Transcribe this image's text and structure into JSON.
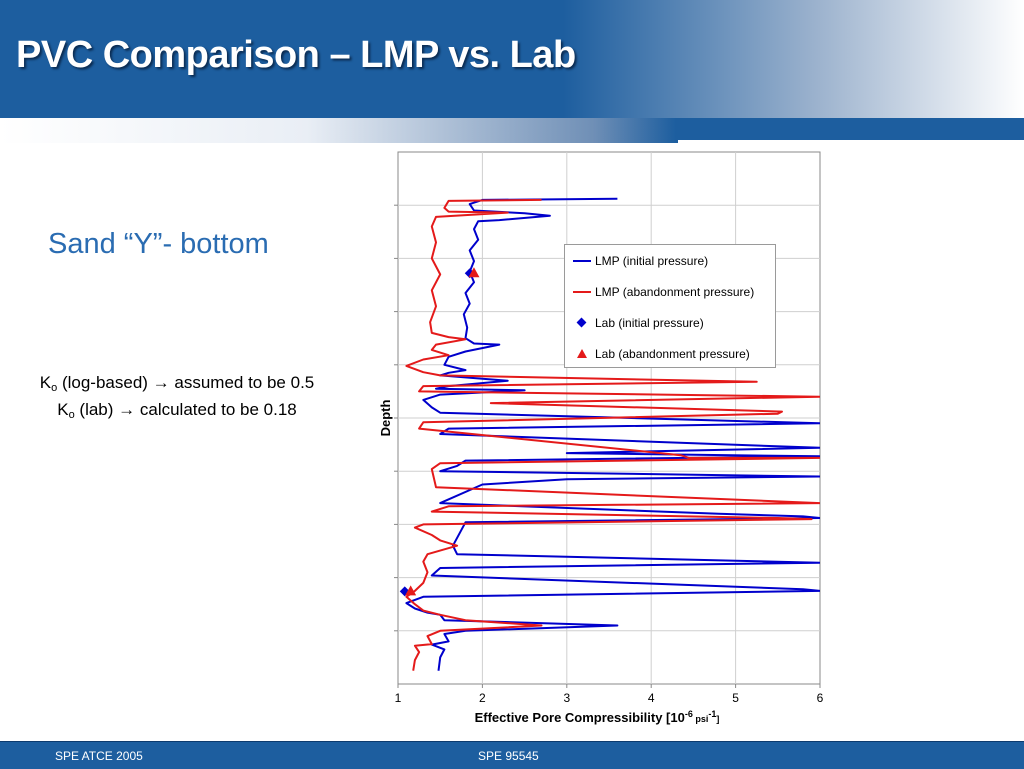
{
  "slide": {
    "title": "PVC Comparison – LMP vs. Lab",
    "subtitle": "Sand “Y”- bottom",
    "notes": [
      {
        "symbol": "K",
        "sub": "o",
        "text": " (log-based) → assumed to be 0.5"
      },
      {
        "symbol": "K",
        "sub": "o",
        "text": " (lab) → calculated to be 0.18"
      }
    ]
  },
  "footer": {
    "left": "SPE ATCE 2005",
    "center": "SPE 95545"
  },
  "colors": {
    "header_blue": "#1d5e9f",
    "subtitle_blue": "#2a6cb2",
    "series_initial": "#0000cc",
    "series_abandon": "#e41a1a"
  },
  "chart_data": {
    "type": "line",
    "orientation": "vertical-depth",
    "xlabel_main": "Effective Pore Compressibility [10",
    "xlabel_sup1": "-6",
    "xlabel_mid": " psi",
    "xlabel_sup2": "-1",
    "xlabel_end": "]",
    "ylabel": "Depth",
    "xlim": [
      1,
      6
    ],
    "ylim": [
      0,
      1
    ],
    "y_inverted": true,
    "xticks": [
      "1",
      "2",
      "3",
      "4",
      "5",
      "6"
    ],
    "grid": true,
    "legend_position": "top-right",
    "legend": [
      {
        "name": "LMP (initial pressure)",
        "kind": "line",
        "color": "#0000cc"
      },
      {
        "name": "LMP (abandonment pressure)",
        "kind": "line",
        "color": "#e41a1a"
      },
      {
        "name": "Lab (initial pressure)",
        "kind": "diamond",
        "color": "#0000cc"
      },
      {
        "name": "Lab (abandonment pressure)",
        "kind": "triangle",
        "color": "#e41a1a"
      }
    ],
    "series": [
      {
        "name": "LMP (initial pressure)",
        "color": "#0000cc",
        "points": [
          [
            3.6,
            0.088
          ],
          [
            2.0,
            0.09
          ],
          [
            1.85,
            0.098
          ],
          [
            1.9,
            0.11
          ],
          [
            2.5,
            0.115
          ],
          [
            2.8,
            0.12
          ],
          [
            2.2,
            0.128
          ],
          [
            1.95,
            0.13
          ],
          [
            1.9,
            0.145
          ],
          [
            1.95,
            0.165
          ],
          [
            1.85,
            0.185
          ],
          [
            1.9,
            0.205
          ],
          [
            1.85,
            0.225
          ],
          [
            1.9,
            0.245
          ],
          [
            1.8,
            0.265
          ],
          [
            1.85,
            0.285
          ],
          [
            1.78,
            0.305
          ],
          [
            1.82,
            0.33
          ],
          [
            1.8,
            0.35
          ],
          [
            1.9,
            0.36
          ],
          [
            2.2,
            0.362
          ],
          [
            1.8,
            0.375
          ],
          [
            1.6,
            0.385
          ],
          [
            1.55,
            0.4
          ],
          [
            1.8,
            0.41
          ],
          [
            1.6,
            0.415
          ],
          [
            1.5,
            0.42
          ],
          [
            2.3,
            0.43
          ],
          [
            1.6,
            0.44
          ],
          [
            1.45,
            0.445
          ],
          [
            2.5,
            0.448
          ],
          [
            1.5,
            0.456
          ],
          [
            1.3,
            0.466
          ],
          [
            1.4,
            0.48
          ],
          [
            1.5,
            0.49
          ],
          [
            6.0,
            0.51
          ],
          [
            1.6,
            0.52
          ],
          [
            1.5,
            0.53
          ],
          [
            6.0,
            0.556
          ],
          [
            3.0,
            0.566
          ],
          [
            6.0,
            0.572
          ],
          [
            1.8,
            0.58
          ],
          [
            1.7,
            0.59
          ],
          [
            1.5,
            0.6
          ],
          [
            6.0,
            0.61
          ],
          [
            3.0,
            0.615
          ],
          [
            2.0,
            0.625
          ],
          [
            1.5,
            0.66
          ],
          [
            4.8,
            0.68
          ],
          [
            5.8,
            0.685
          ],
          [
            6.0,
            0.688
          ],
          [
            1.8,
            0.696
          ],
          [
            1.65,
            0.74
          ],
          [
            1.7,
            0.756
          ],
          [
            6.0,
            0.772
          ],
          [
            1.5,
            0.782
          ],
          [
            1.4,
            0.796
          ],
          [
            5.8,
            0.822
          ],
          [
            6.0,
            0.825
          ],
          [
            1.3,
            0.836
          ],
          [
            1.1,
            0.848
          ],
          [
            1.2,
            0.858
          ],
          [
            1.35,
            0.866
          ],
          [
            1.5,
            0.87
          ],
          [
            1.55,
            0.88
          ],
          [
            3.6,
            0.89
          ],
          [
            1.8,
            0.9
          ],
          [
            1.55,
            0.906
          ],
          [
            1.6,
            0.92
          ],
          [
            1.4,
            0.926
          ],
          [
            1.55,
            0.935
          ],
          [
            1.5,
            0.95
          ],
          [
            1.48,
            0.975
          ]
        ]
      },
      {
        "name": "LMP (abandonment pressure)",
        "color": "#e41a1a",
        "points": [
          [
            2.7,
            0.09
          ],
          [
            1.6,
            0.092
          ],
          [
            1.55,
            0.105
          ],
          [
            1.6,
            0.112
          ],
          [
            2.3,
            0.114
          ],
          [
            1.45,
            0.122
          ],
          [
            1.4,
            0.14
          ],
          [
            1.45,
            0.17
          ],
          [
            1.4,
            0.2
          ],
          [
            1.5,
            0.23
          ],
          [
            1.4,
            0.26
          ],
          [
            1.45,
            0.29
          ],
          [
            1.38,
            0.32
          ],
          [
            1.4,
            0.34
          ],
          [
            1.6,
            0.348
          ],
          [
            1.8,
            0.352
          ],
          [
            1.45,
            0.362
          ],
          [
            1.4,
            0.372
          ],
          [
            1.6,
            0.382
          ],
          [
            1.3,
            0.39
          ],
          [
            1.1,
            0.402
          ],
          [
            1.3,
            0.414
          ],
          [
            1.5,
            0.42
          ],
          [
            5.25,
            0.432
          ],
          [
            1.3,
            0.44
          ],
          [
            1.25,
            0.45
          ],
          [
            6.0,
            0.46
          ],
          [
            2.1,
            0.472
          ],
          [
            5.55,
            0.488
          ],
          [
            5.5,
            0.492
          ],
          [
            1.3,
            0.508
          ],
          [
            1.25,
            0.52
          ],
          [
            4.35,
            0.57
          ],
          [
            4.45,
            0.575
          ],
          [
            6.0,
            0.575
          ],
          [
            1.5,
            0.585
          ],
          [
            1.4,
            0.596
          ],
          [
            1.45,
            0.63
          ],
          [
            6.0,
            0.66
          ],
          [
            1.6,
            0.666
          ],
          [
            1.4,
            0.676
          ],
          [
            5.5,
            0.688
          ],
          [
            5.9,
            0.69
          ],
          [
            1.3,
            0.7
          ],
          [
            1.2,
            0.706
          ],
          [
            1.4,
            0.72
          ],
          [
            1.5,
            0.73
          ],
          [
            1.7,
            0.74
          ],
          [
            1.35,
            0.756
          ],
          [
            1.3,
            0.77
          ],
          [
            1.35,
            0.79
          ],
          [
            1.3,
            0.81
          ],
          [
            1.2,
            0.825
          ],
          [
            1.1,
            0.836
          ],
          [
            1.2,
            0.85
          ],
          [
            1.3,
            0.862
          ],
          [
            1.5,
            0.87
          ],
          [
            1.8,
            0.88
          ],
          [
            2.7,
            0.89
          ],
          [
            1.5,
            0.9
          ],
          [
            1.35,
            0.91
          ],
          [
            1.4,
            0.925
          ],
          [
            1.2,
            0.928
          ],
          [
            1.25,
            0.94
          ],
          [
            1.2,
            0.955
          ],
          [
            1.18,
            0.975
          ]
        ]
      }
    ],
    "markers": [
      {
        "series": "Lab (initial pressure)",
        "shape": "diamond",
        "color": "#0000cc",
        "points": [
          [
            1.85,
            0.228
          ],
          [
            1.08,
            0.826
          ]
        ]
      },
      {
        "series": "Lab (abandonment pressure)",
        "shape": "triangle",
        "color": "#e41a1a",
        "points": [
          [
            1.9,
            0.228
          ],
          [
            1.15,
            0.826
          ]
        ]
      }
    ]
  }
}
